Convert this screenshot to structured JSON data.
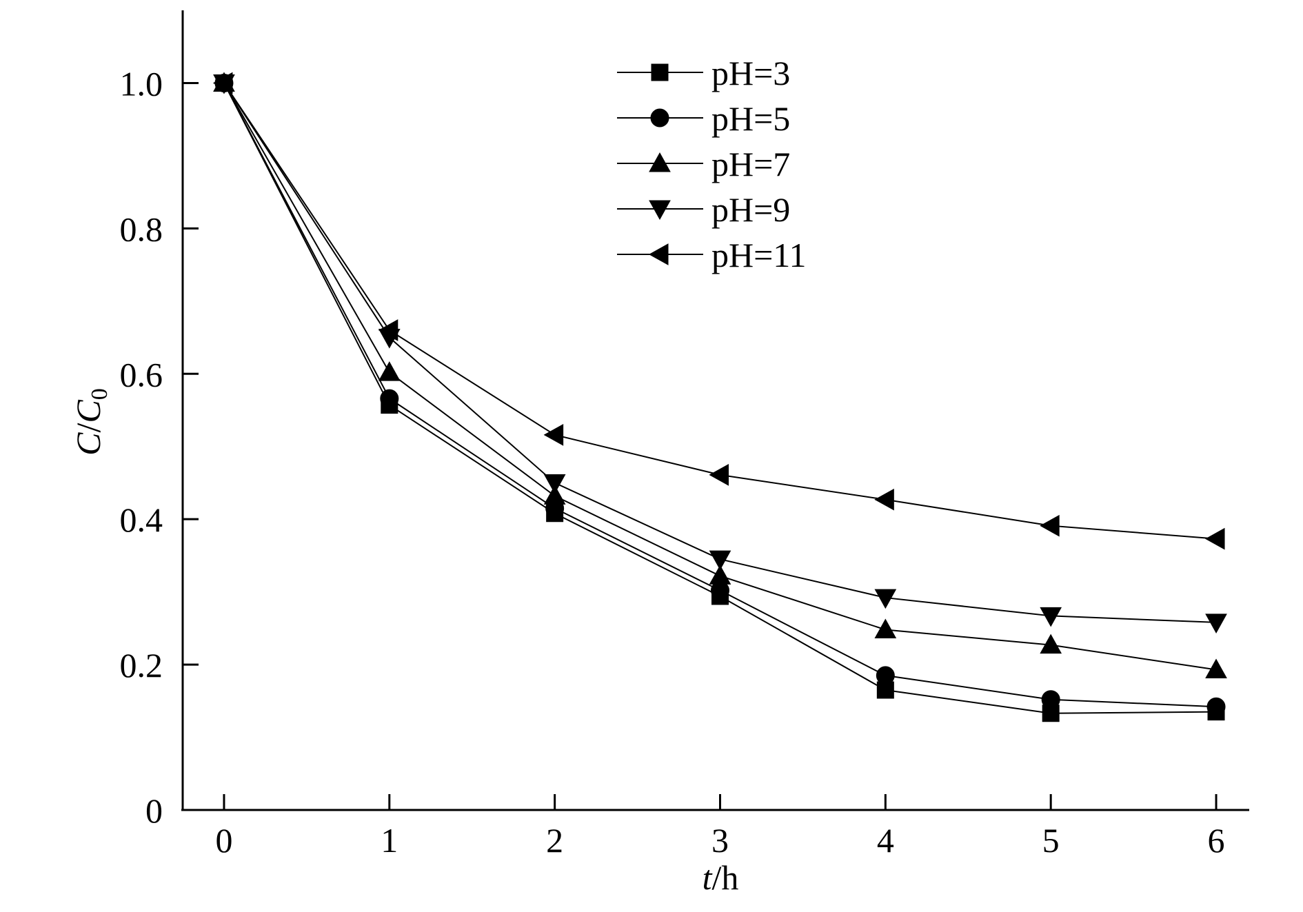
{
  "chart_data": {
    "type": "line",
    "xlabel": {
      "italic": "t",
      "rest": "/h"
    },
    "ylabel": {
      "italic_c": "C",
      "slash": "/",
      "italic_c0": "C",
      "sub": "0"
    },
    "xlim": [
      -0.25,
      6.2
    ],
    "ylim": [
      0,
      1.1
    ],
    "x_ticks": [
      0,
      1,
      2,
      3,
      4,
      5,
      6
    ],
    "x_tick_labels": [
      "0",
      "1",
      "2",
      "3",
      "4",
      "5",
      "6"
    ],
    "y_ticks": [
      0,
      0.2,
      0.4,
      0.6,
      0.8,
      1.0
    ],
    "y_tick_labels": [
      "0",
      "0.2",
      "0.4",
      "0.6",
      "0.8",
      "1.0"
    ],
    "legend_position": "top-center",
    "grid": false,
    "x": [
      0,
      1,
      2,
      3,
      4,
      5,
      6
    ],
    "series": [
      {
        "name": "pH=3",
        "marker": "square",
        "values": [
          1.0,
          0.557,
          0.408,
          0.294,
          0.165,
          0.133,
          0.135
        ]
      },
      {
        "name": "pH=5",
        "marker": "circle",
        "values": [
          1.0,
          0.566,
          0.415,
          0.302,
          0.185,
          0.152,
          0.142
        ]
      },
      {
        "name": "pH=7",
        "marker": "triangle-up",
        "values": [
          1.0,
          0.602,
          0.432,
          0.322,
          0.248,
          0.227,
          0.193
        ]
      },
      {
        "name": "pH=9",
        "marker": "triangle-down",
        "values": [
          1.0,
          0.65,
          0.45,
          0.345,
          0.292,
          0.267,
          0.258
        ]
      },
      {
        "name": "pH=11",
        "marker": "triangle-left",
        "values": [
          1.0,
          0.66,
          0.516,
          0.461,
          0.427,
          0.391,
          0.373
        ]
      }
    ]
  }
}
